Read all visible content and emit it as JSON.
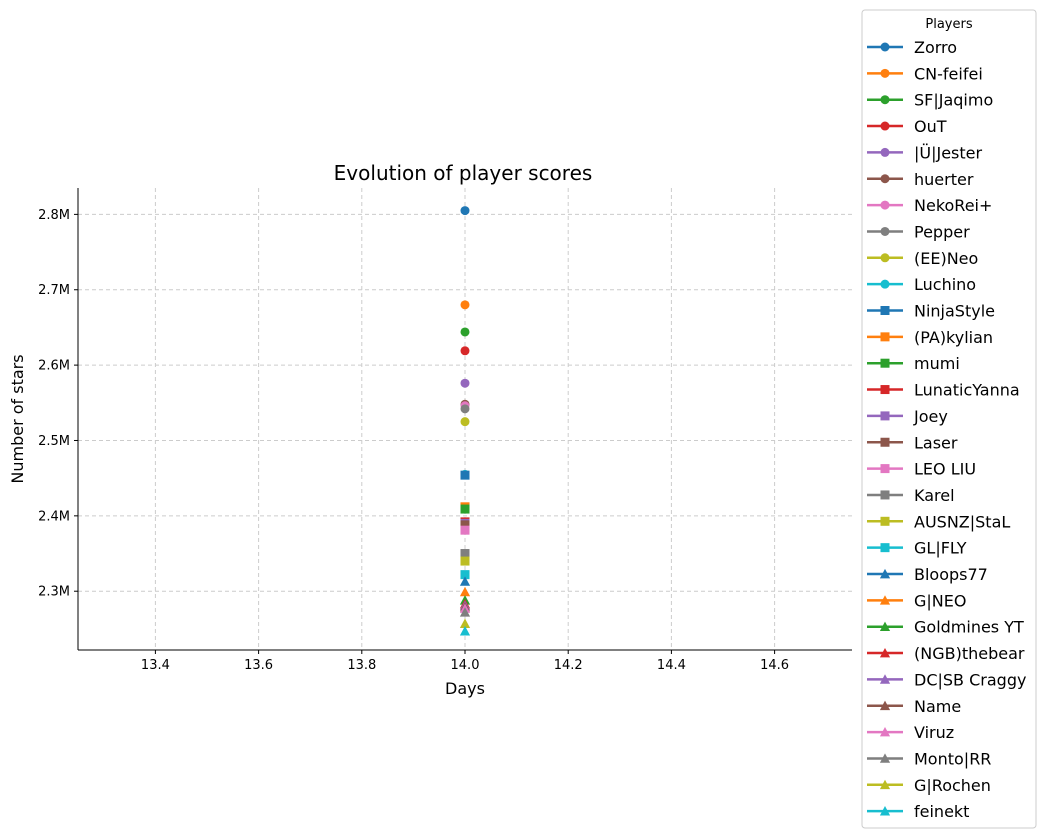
{
  "chart_data": {
    "type": "line",
    "title": "Evolution of player scores",
    "xlabel": "Days",
    "ylabel": "Number of stars",
    "xlim": [
      13.25,
      14.75
    ],
    "ylim": [
      2.222,
      2.835
    ],
    "x_ticks": [
      13.4,
      13.6,
      13.8,
      14.0,
      14.2,
      14.4,
      14.6
    ],
    "x_tick_labels": [
      "13.4",
      "13.6",
      "13.8",
      "14.0",
      "14.2",
      "14.4",
      "14.6"
    ],
    "y_ticks": [
      2.3,
      2.4,
      2.5,
      2.6,
      2.7,
      2.8
    ],
    "y_tick_labels": [
      "2.3M",
      "2.4M",
      "2.5M",
      "2.6M",
      "2.7M",
      "2.8M"
    ],
    "y_unit": "M",
    "grid": true,
    "legend_title": "Players",
    "legend_position": "outside right",
    "x": [
      14.0
    ],
    "series": [
      {
        "name": "Zorro",
        "values": [
          2.805
        ],
        "color": "#1f77b4",
        "marker": "circle"
      },
      {
        "name": "CN-feifei",
        "values": [
          2.68
        ],
        "color": "#ff7f0e",
        "marker": "circle"
      },
      {
        "name": "SF|Jaqimo",
        "values": [
          2.644
        ],
        "color": "#2ca02c",
        "marker": "circle"
      },
      {
        "name": "OuT",
        "values": [
          2.619
        ],
        "color": "#d62728",
        "marker": "circle"
      },
      {
        "name": "|Ü|Jester",
        "values": [
          2.576
        ],
        "color": "#9467bd",
        "marker": "circle"
      },
      {
        "name": "huerter",
        "values": [
          2.548
        ],
        "color": "#8c564b",
        "marker": "circle"
      },
      {
        "name": "NekoRei+",
        "values": [
          2.546
        ],
        "color": "#e377c2",
        "marker": "circle"
      },
      {
        "name": "Pepper",
        "values": [
          2.542
        ],
        "color": "#7f7f7f",
        "marker": "circle"
      },
      {
        "name": "(EE)Neo",
        "values": [
          2.525
        ],
        "color": "#bcbd22",
        "marker": "circle"
      },
      {
        "name": "Luchino",
        "values": [
          2.455
        ],
        "color": "#17becf",
        "marker": "circle"
      },
      {
        "name": "NinjaStyle",
        "values": [
          2.454
        ],
        "color": "#1f77b4",
        "marker": "square"
      },
      {
        "name": "(PA)kylian",
        "values": [
          2.412
        ],
        "color": "#ff7f0e",
        "marker": "square"
      },
      {
        "name": "mumi",
        "values": [
          2.409
        ],
        "color": "#2ca02c",
        "marker": "square"
      },
      {
        "name": "LunaticYanna",
        "values": [
          2.392
        ],
        "color": "#d62728",
        "marker": "square"
      },
      {
        "name": "Joey",
        "values": [
          2.39
        ],
        "color": "#9467bd",
        "marker": "square"
      },
      {
        "name": "Laser",
        "values": [
          2.388
        ],
        "color": "#8c564b",
        "marker": "square"
      },
      {
        "name": "LEO LIU",
        "values": [
          2.381
        ],
        "color": "#e377c2",
        "marker": "square"
      },
      {
        "name": "Karel",
        "values": [
          2.35
        ],
        "color": "#7f7f7f",
        "marker": "square"
      },
      {
        "name": "AUSNZ|StaL",
        "values": [
          2.34
        ],
        "color": "#bcbd22",
        "marker": "square"
      },
      {
        "name": "GL|FLY",
        "values": [
          2.322
        ],
        "color": "#17becf",
        "marker": "square"
      },
      {
        "name": "Bloops77",
        "values": [
          2.313
        ],
        "color": "#1f77b4",
        "marker": "triangle"
      },
      {
        "name": "G|NEO",
        "values": [
          2.299
        ],
        "color": "#ff7f0e",
        "marker": "triangle"
      },
      {
        "name": "Goldmines YT",
        "values": [
          2.288
        ],
        "color": "#2ca02c",
        "marker": "triangle"
      },
      {
        "name": "(NGB)thebear",
        "values": [
          2.283
        ],
        "color": "#d62728",
        "marker": "triangle"
      },
      {
        "name": "DC|SB Craggy",
        "values": [
          2.281
        ],
        "color": "#9467bd",
        "marker": "triangle"
      },
      {
        "name": "Name",
        "values": [
          2.279
        ],
        "color": "#8c564b",
        "marker": "triangle"
      },
      {
        "name": "Viruz",
        "values": [
          2.277
        ],
        "color": "#e377c2",
        "marker": "triangle"
      },
      {
        "name": "Monto|RR",
        "values": [
          2.272
        ],
        "color": "#7f7f7f",
        "marker": "triangle"
      },
      {
        "name": "G|Rochen",
        "values": [
          2.257
        ],
        "color": "#bcbd22",
        "marker": "triangle"
      },
      {
        "name": "feinekt",
        "values": [
          2.247
        ],
        "color": "#17becf",
        "marker": "triangle"
      }
    ]
  }
}
